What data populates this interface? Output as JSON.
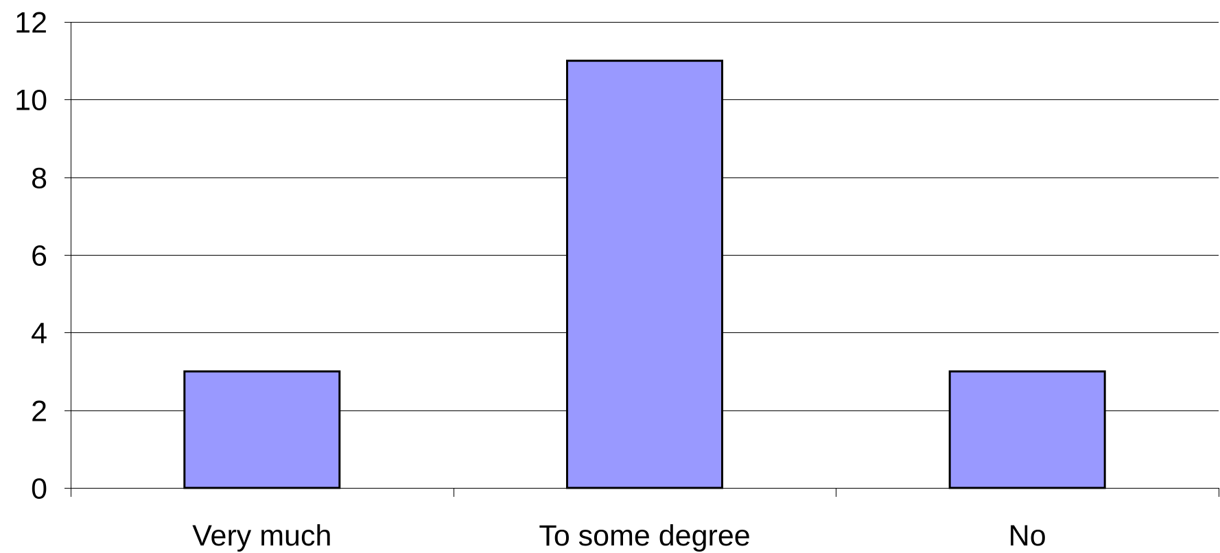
{
  "chart_data": {
    "type": "bar",
    "title": "",
    "xlabel": "",
    "ylabel": "",
    "categories": [
      "Very much",
      "To some degree",
      "No"
    ],
    "values": [
      3,
      11,
      3
    ],
    "ylim": [
      0,
      12
    ],
    "yticks": [
      0,
      2,
      4,
      6,
      8,
      10,
      12
    ],
    "ytick_labels": [
      "0",
      "2",
      "4",
      "6",
      "8",
      "10",
      "12"
    ],
    "grid": true,
    "legend": "none",
    "colors": {
      "bar_fill": "#9999ff",
      "bar_stroke": "#000000",
      "gridline": "#000000",
      "axis": "#000000"
    }
  }
}
